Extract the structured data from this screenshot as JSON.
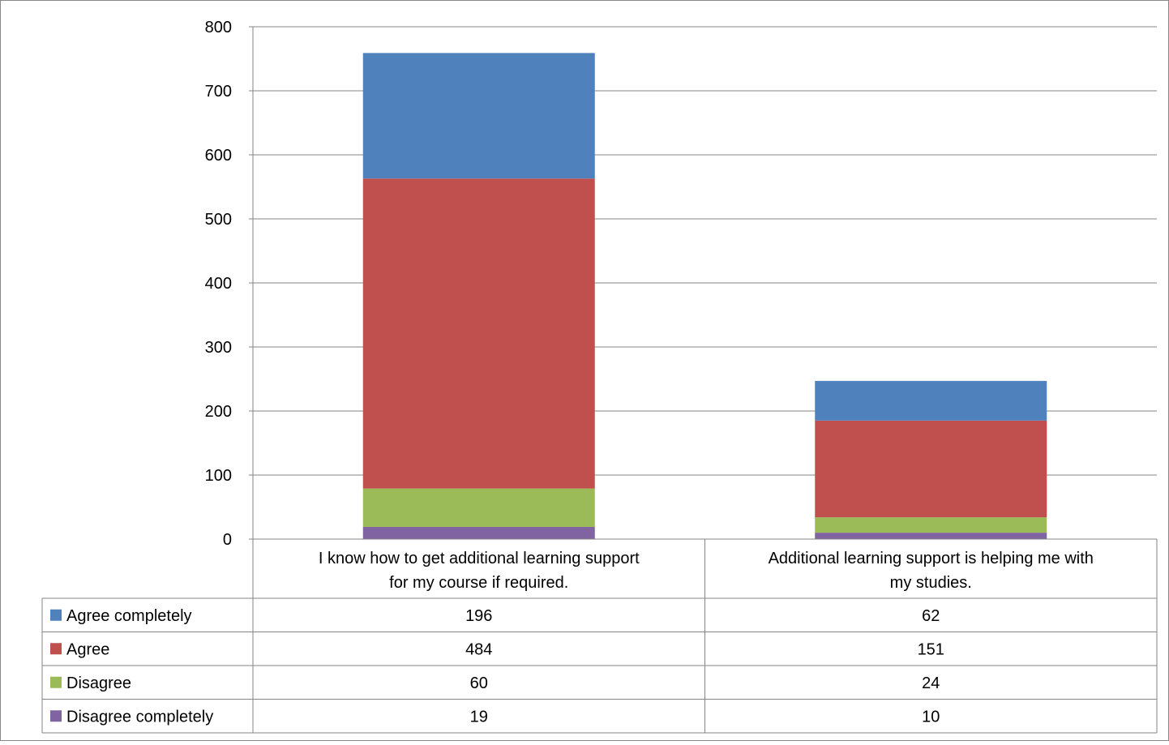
{
  "chart_data": {
    "type": "bar",
    "stacked": true,
    "categories": [
      "I know how to get additional learning support for my course if required.",
      "Additional learning support is helping me with my studies."
    ],
    "category_lines": [
      [
        "I know how to get additional learning support",
        "for my course if required."
      ],
      [
        "Additional learning support is helping me with",
        "my studies."
      ]
    ],
    "series": [
      {
        "name": "Agree completely",
        "values": [
          196,
          62
        ],
        "color": "#4F81BD"
      },
      {
        "name": "Agree",
        "values": [
          484,
          151
        ],
        "color": "#C0504D"
      },
      {
        "name": "Disagree",
        "values": [
          60,
          24
        ],
        "color": "#9BBB59"
      },
      {
        "name": "Disagree completely",
        "values": [
          19,
          10
        ],
        "color": "#8064A2"
      }
    ],
    "ylim": [
      0,
      800
    ],
    "yticks": [
      0,
      100,
      200,
      300,
      400,
      500,
      600,
      700,
      800
    ],
    "grid": true,
    "legend": "data-table",
    "data_table": true
  }
}
